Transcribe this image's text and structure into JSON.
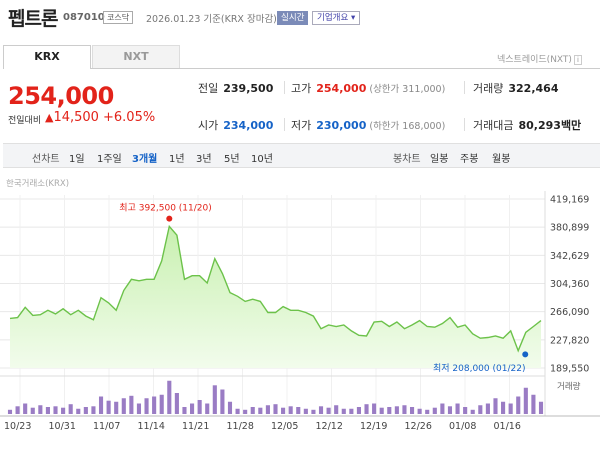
{
  "header": {
    "name": "펩트론",
    "code": "087010",
    "market": "코스닥",
    "date": "2026.01.23 기준(KRX 장마감)",
    "realtime": "실시간",
    "company_info": "기업개요",
    "company_info_chevron": "chevron-down-icon"
  },
  "tabs": {
    "krx": "KRX",
    "nxt": "NXT",
    "nxt_link": "넥스트레이드(NXT)"
  },
  "price": {
    "current": "254,000",
    "change_label": "전일대비",
    "change_icon": "up-triangle-icon",
    "change_value": "14,500",
    "change_pct": "+6.05%"
  },
  "stats": {
    "prev_close": {
      "label": "전일",
      "value": "239,500"
    },
    "high": {
      "label": "고가",
      "value": "254,000",
      "sub": "(상한가 311,000)"
    },
    "volume": {
      "label": "거래량",
      "value": "322,464"
    },
    "open": {
      "label": "시가",
      "value": "234,000"
    },
    "low": {
      "label": "저가",
      "value": "230,000",
      "sub": "(하한가 168,000)"
    },
    "amount": {
      "label": "거래대금",
      "value": "80,293",
      "unit": "백만"
    }
  },
  "toolbar": {
    "line_label": "선차트",
    "periods": [
      "1일",
      "1주일",
      "3개월",
      "1년",
      "3년",
      "5년",
      "10년"
    ],
    "active_period": "3개월",
    "candle_label": "봉차트",
    "candles": [
      "일봉",
      "주봉",
      "월봉"
    ]
  },
  "source": "한국거래소(KRX)",
  "colors": {
    "up": "#e2231a",
    "down": "#1663c7",
    "line": "#6cc24a",
    "area": "#c8f0b0",
    "volume": "#9a7cc4"
  },
  "chart_data": {
    "type": "area",
    "x_ticks": [
      "10/23",
      "10/31",
      "11/07",
      "11/14",
      "11/21",
      "11/28",
      "12/05",
      "12/12",
      "12/19",
      "12/26",
      "01/08",
      "01/16"
    ],
    "y_ticks": [
      419169,
      380899,
      342629,
      304360,
      266090,
      227820,
      189550
    ],
    "ylim": [
      189550,
      419169
    ],
    "max_label": "최고 392,500 (11/20)",
    "min_label": "최저 208,000 (01/22)",
    "max_value": 392500,
    "min_value": 208000,
    "volume_label": "거래량",
    "values": [
      257000,
      258000,
      272000,
      261000,
      262000,
      268000,
      263000,
      270000,
      262000,
      268000,
      260000,
      255000,
      285000,
      278000,
      268000,
      295000,
      310000,
      308000,
      310000,
      310000,
      335000,
      382000,
      370000,
      310000,
      315000,
      315000,
      305000,
      338000,
      318000,
      292000,
      287000,
      280000,
      283000,
      280000,
      265000,
      265000,
      273000,
      268000,
      268000,
      265000,
      260000,
      243000,
      248000,
      246000,
      248000,
      240000,
      234000,
      233000,
      252000,
      253000,
      246000,
      252000,
      243000,
      248000,
      254000,
      246000,
      245000,
      250000,
      258000,
      245000,
      248000,
      236000,
      230000,
      231000,
      233000,
      230000,
      240000,
      213000,
      238000,
      246000,
      254000
    ],
    "volume": [
      0.12,
      0.22,
      0.3,
      0.18,
      0.25,
      0.2,
      0.22,
      0.18,
      0.28,
      0.15,
      0.2,
      0.22,
      0.5,
      0.38,
      0.35,
      0.45,
      0.52,
      0.3,
      0.45,
      0.5,
      0.55,
      0.95,
      0.6,
      0.2,
      0.3,
      0.4,
      0.3,
      0.82,
      0.7,
      0.35,
      0.15,
      0.12,
      0.2,
      0.18,
      0.25,
      0.28,
      0.18,
      0.22,
      0.2,
      0.15,
      0.12,
      0.22,
      0.18,
      0.25,
      0.15,
      0.15,
      0.2,
      0.28,
      0.3,
      0.18,
      0.2,
      0.22,
      0.25,
      0.2,
      0.15,
      0.12,
      0.18,
      0.3,
      0.22,
      0.3,
      0.2,
      0.12,
      0.25,
      0.3,
      0.45,
      0.35,
      0.3,
      0.5,
      0.75,
      0.55,
      0.35
    ]
  }
}
